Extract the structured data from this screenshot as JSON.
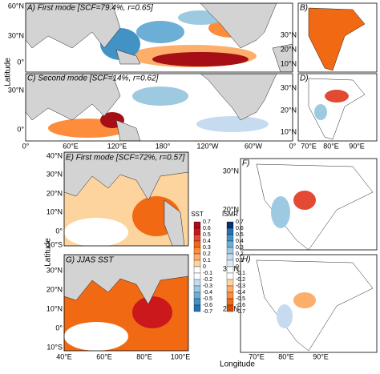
{
  "panels": [
    "A) First mode [SCF=79.4%, r=0.65]",
    "B)",
    "C) Second mode [SCF=14%, r=0.62]",
    "D)",
    "E) First mode [SCF=72%, r=0.57]",
    "F)",
    "G) JJAS SST",
    "H)"
  ],
  "axis_labels": {
    "latitude_top": "Latitude",
    "latitude_bottom": "Latitude",
    "longitude": "Longitude"
  },
  "ticks": {
    "a_y": [
      "60°N",
      "30°N",
      "0°"
    ],
    "b_y": [
      "30°N",
      "20°N",
      "10°N"
    ],
    "c_y": [
      "30°N",
      "0°"
    ],
    "d_y": [
      "30°N",
      "20°N",
      "10°N"
    ],
    "ac_x": [
      "0°",
      "60°E",
      "120°E",
      "180°",
      "120°W",
      "60°W",
      "0°"
    ],
    "bd_x": [
      "70°E",
      "80°E",
      "90°E"
    ],
    "e_y": [
      "40°N",
      "30°N",
      "20°N",
      "10°N",
      "0°",
      "10°S"
    ],
    "g_y": [
      "30°N",
      "20°N",
      "10°N",
      "0°",
      "10°S"
    ],
    "eg_x": [
      "40°E",
      "60°E",
      "80°E",
      "100°E"
    ],
    "f_y": [
      "30°N",
      "20°N"
    ],
    "h_y": [
      "30°N",
      "20°N"
    ],
    "fh_x": [
      "70°E",
      "80°E",
      "90°E"
    ]
  },
  "colorbars": [
    {
      "title": "SST",
      "ticks": [
        0.7,
        0.6,
        0.5,
        0.4,
        0.3,
        0.2,
        0.1,
        0,
        -0.1,
        -0.2,
        -0.3,
        -0.4,
        -0.5,
        -0.6,
        -0.7
      ]
    },
    {
      "title": "ISMR",
      "ticks": [
        0.7,
        0.6,
        0.5,
        0.4,
        0.3,
        0.2,
        0.1,
        0,
        -0.1,
        -0.2,
        -0.3,
        -0.4,
        -0.5,
        -0.6,
        -0.7
      ]
    }
  ]
}
